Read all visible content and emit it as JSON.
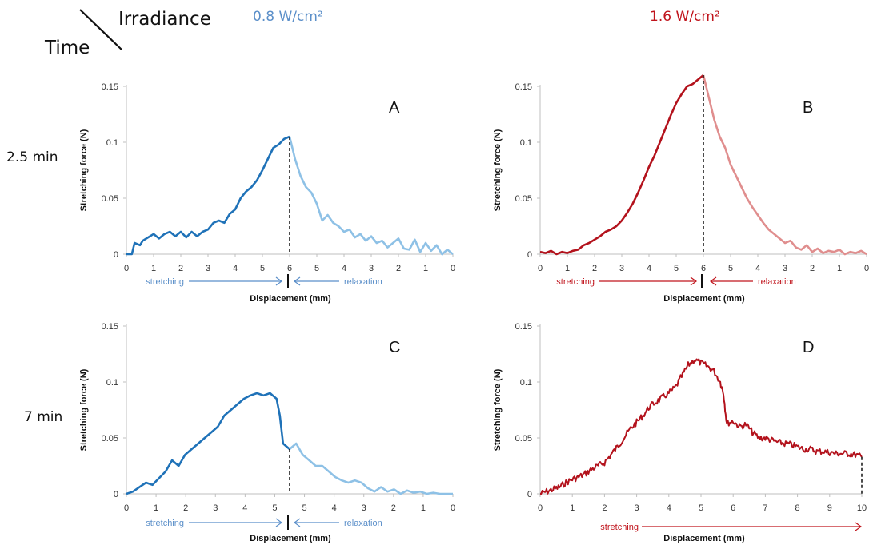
{
  "header": {
    "time_label": "Time",
    "irradiance_label": "Irradiance",
    "col_left": "0.8 W/cm²",
    "col_right": "1.6 W/cm²",
    "row_top": "2.5 min",
    "row_bottom": "7 min"
  },
  "colors": {
    "blue_dark": "#1f72b8",
    "blue_light": "#8ec1e6",
    "blue_text": "#5b8fc9",
    "red_dark": "#b3121c",
    "red_light": "#e08e8e",
    "red_text": "#c0141c"
  },
  "chart_data": [
    {
      "id": "A",
      "type": "line",
      "ylabel": "Stretching force (N)",
      "xlabel": "Displacement (mm)",
      "ylim": [
        0,
        0.15
      ],
      "yticks": [
        "0",
        "0.05",
        "0.1",
        "0.15"
      ],
      "xticks": [
        "0",
        "1",
        "2",
        "3",
        "4",
        "5",
        "6",
        "5",
        "4",
        "3",
        "2",
        "1",
        "0"
      ],
      "stretch_label": "stretching",
      "relax_label": "relaxation",
      "series": [
        {
          "role": "stretching",
          "x": [
            0,
            0.2,
            0.3,
            0.5,
            0.6,
            0.8,
            1,
            1.2,
            1.4,
            1.6,
            1.8,
            2,
            2.2,
            2.4,
            2.6,
            2.8,
            3,
            3.2,
            3.4,
            3.6,
            3.8,
            4,
            4.2,
            4.4,
            4.6,
            4.8,
            5,
            5.2,
            5.4,
            5.6,
            5.8,
            6
          ],
          "y": [
            0,
            0,
            0.01,
            0.008,
            0.012,
            0.015,
            0.018,
            0.014,
            0.018,
            0.02,
            0.016,
            0.02,
            0.015,
            0.02,
            0.016,
            0.02,
            0.022,
            0.028,
            0.03,
            0.028,
            0.036,
            0.04,
            0.05,
            0.056,
            0.06,
            0.066,
            0.075,
            0.085,
            0.095,
            0.098,
            0.103,
            0.105
          ]
        },
        {
          "role": "relaxation",
          "x": [
            6,
            6.2,
            6.4,
            6.6,
            6.8,
            7,
            7.2,
            7.4,
            7.6,
            7.8,
            8,
            8.2,
            8.4,
            8.6,
            8.8,
            9,
            9.2,
            9.4,
            9.6,
            9.8,
            10,
            10.2,
            10.4,
            10.6,
            10.8,
            11,
            11.2,
            11.4,
            11.6,
            11.8,
            12
          ],
          "y": [
            0.105,
            0.085,
            0.07,
            0.06,
            0.055,
            0.045,
            0.03,
            0.035,
            0.028,
            0.025,
            0.02,
            0.022,
            0.015,
            0.018,
            0.012,
            0.016,
            0.01,
            0.012,
            0.006,
            0.01,
            0.014,
            0.005,
            0.004,
            0.013,
            0.002,
            0.01,
            0.003,
            0.008,
            0,
            0.004,
            0
          ]
        }
      ]
    },
    {
      "id": "B",
      "type": "line",
      "ylabel": "Stretching force (N)",
      "xlabel": "Displacement (mm)",
      "ylim": [
        0,
        0.15
      ],
      "yticks": [
        "0",
        "0.05",
        "0.1",
        "0.15"
      ],
      "xticks": [
        "0",
        "1",
        "2",
        "3",
        "4",
        "5",
        "6",
        "5",
        "4",
        "3",
        "2",
        "1",
        "0"
      ],
      "stretch_label": "stretching",
      "relax_label": "relaxation",
      "series": [
        {
          "role": "stretching",
          "x": [
            0,
            0.2,
            0.4,
            0.6,
            0.8,
            1,
            1.2,
            1.4,
            1.6,
            1.8,
            2,
            2.2,
            2.4,
            2.6,
            2.8,
            3,
            3.2,
            3.4,
            3.6,
            3.8,
            4,
            4.2,
            4.4,
            4.6,
            4.8,
            5,
            5.2,
            5.4,
            5.6,
            5.8,
            6
          ],
          "y": [
            0.002,
            0.001,
            0.003,
            0,
            0.002,
            0.001,
            0.003,
            0.004,
            0.008,
            0.01,
            0.013,
            0.016,
            0.02,
            0.022,
            0.025,
            0.03,
            0.037,
            0.045,
            0.055,
            0.066,
            0.078,
            0.088,
            0.1,
            0.112,
            0.124,
            0.135,
            0.143,
            0.15,
            0.152,
            0.156,
            0.16
          ]
        },
        {
          "role": "relaxation",
          "x": [
            6,
            6.2,
            6.4,
            6.6,
            6.8,
            7,
            7.2,
            7.4,
            7.6,
            7.8,
            8,
            8.2,
            8.4,
            8.6,
            8.8,
            9,
            9.2,
            9.4,
            9.6,
            9.8,
            10,
            10.2,
            10.4,
            10.6,
            10.8,
            11,
            11.2,
            11.4,
            11.6,
            11.8,
            12
          ],
          "y": [
            0.16,
            0.14,
            0.12,
            0.105,
            0.095,
            0.08,
            0.07,
            0.06,
            0.05,
            0.042,
            0.035,
            0.028,
            0.022,
            0.018,
            0.014,
            0.01,
            0.012,
            0.006,
            0.004,
            0.008,
            0.002,
            0.005,
            0.001,
            0.003,
            0.002,
            0.004,
            0,
            0.002,
            0.001,
            0.003,
            0
          ]
        }
      ]
    },
    {
      "id": "C",
      "type": "line",
      "ylabel": "Stretching force (N)",
      "xlabel": "Displacement (mm)",
      "ylim": [
        0,
        0.15
      ],
      "yticks": [
        "0",
        "0.05",
        "0.1",
        "0.15"
      ],
      "xticks": [
        "0",
        "1",
        "2",
        "3",
        "4",
        "5",
        "5",
        "4",
        "3",
        "2",
        "1",
        "0"
      ],
      "stretch_label": "stretching",
      "relax_label": "relaxation",
      "series": [
        {
          "role": "stretching",
          "x": [
            0,
            0.2,
            0.4,
            0.6,
            0.8,
            1,
            1.2,
            1.4,
            1.6,
            1.8,
            2,
            2.2,
            2.4,
            2.6,
            2.8,
            3,
            3.2,
            3.4,
            3.6,
            3.8,
            4,
            4.2,
            4.4,
            4.6,
            4.7,
            4.8,
            5
          ],
          "y": [
            0,
            0.002,
            0.006,
            0.01,
            0.008,
            0.014,
            0.02,
            0.03,
            0.025,
            0.035,
            0.04,
            0.045,
            0.05,
            0.055,
            0.06,
            0.07,
            0.075,
            0.08,
            0.085,
            0.088,
            0.09,
            0.088,
            0.09,
            0.085,
            0.07,
            0.045,
            0.04
          ]
        },
        {
          "role": "relaxation",
          "x": [
            5,
            5.2,
            5.4,
            5.6,
            5.8,
            6,
            6.2,
            6.4,
            6.6,
            6.8,
            7,
            7.2,
            7.4,
            7.6,
            7.8,
            8,
            8.2,
            8.4,
            8.6,
            8.8,
            9,
            9.2,
            9.4,
            9.6,
            9.8,
            10
          ],
          "y": [
            0.04,
            0.045,
            0.035,
            0.03,
            0.025,
            0.025,
            0.02,
            0.015,
            0.012,
            0.01,
            0.012,
            0.01,
            0.005,
            0.002,
            0.006,
            0.002,
            0.004,
            0,
            0.003,
            0.001,
            0.002,
            0,
            0.001,
            0,
            0,
            0
          ]
        }
      ]
    },
    {
      "id": "D",
      "type": "line",
      "ylabel": "Stretching force (N)",
      "xlabel": "Displacement (mm)",
      "ylim": [
        0,
        0.15
      ],
      "yticks": [
        "0",
        "0.05",
        "0.1",
        "0.15"
      ],
      "xticks": [
        "0",
        "1",
        "2",
        "3",
        "4",
        "5",
        "6",
        "7",
        "8",
        "9",
        "10"
      ],
      "stretch_label": "stretching",
      "series": [
        {
          "role": "stretching",
          "x": [
            0,
            0.2,
            0.4,
            0.6,
            0.8,
            1,
            1.2,
            1.4,
            1.6,
            1.8,
            2,
            2.2,
            2.4,
            2.6,
            2.8,
            3,
            3.2,
            3.4,
            3.6,
            3.8,
            4,
            4.2,
            4.4,
            4.6,
            4.8,
            5,
            5.2,
            5.4,
            5.6,
            5.7,
            5.8,
            6,
            6.2,
            6.4,
            6.6,
            6.8,
            7,
            7.2,
            7.4,
            7.6,
            7.8,
            8,
            8.2,
            8.4,
            8.6,
            8.8,
            9,
            9.2,
            9.4,
            9.6,
            9.8,
            10
          ],
          "y": [
            0,
            0.002,
            0.004,
            0.006,
            0.01,
            0.013,
            0.015,
            0.018,
            0.022,
            0.025,
            0.028,
            0.035,
            0.042,
            0.05,
            0.058,
            0.064,
            0.07,
            0.078,
            0.082,
            0.086,
            0.09,
            0.095,
            0.105,
            0.115,
            0.12,
            0.117,
            0.114,
            0.11,
            0.1,
            0.09,
            0.063,
            0.065,
            0.06,
            0.062,
            0.055,
            0.05,
            0.05,
            0.048,
            0.046,
            0.045,
            0.044,
            0.042,
            0.04,
            0.04,
            0.038,
            0.038,
            0.037,
            0.036,
            0.036,
            0.036,
            0.035,
            0.033
          ]
        }
      ]
    }
  ]
}
